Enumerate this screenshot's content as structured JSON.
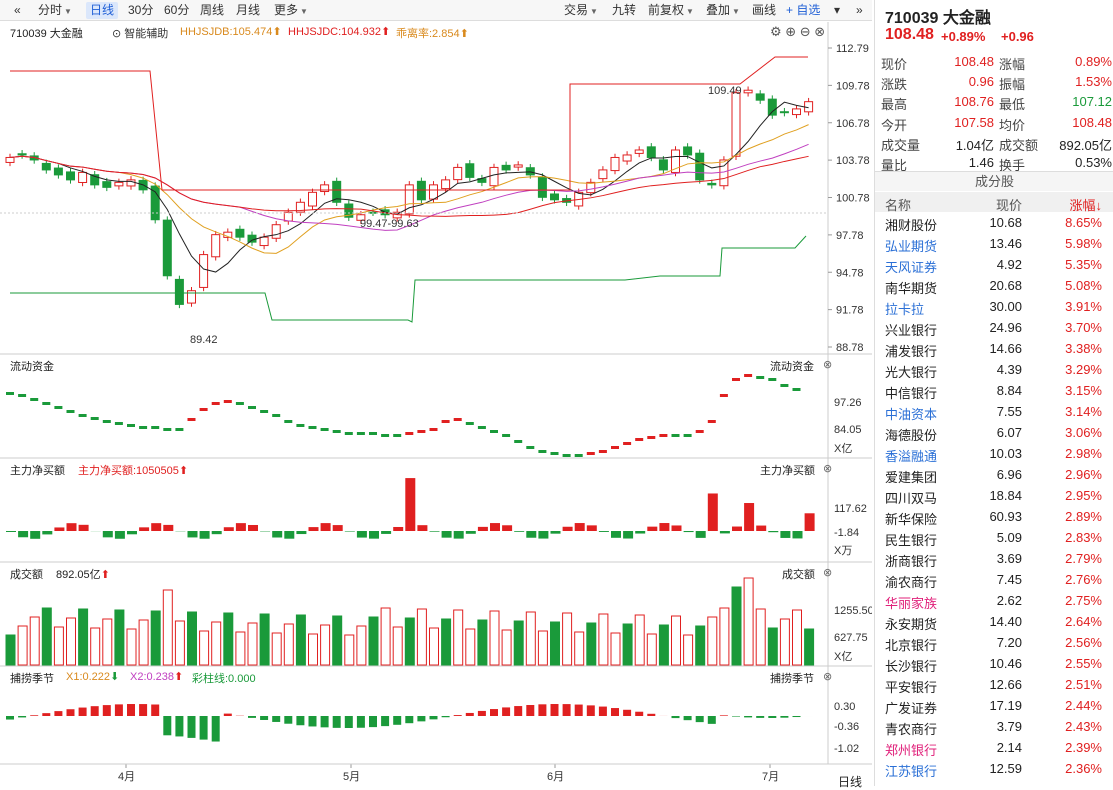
{
  "toolbar": {
    "left": [
      "分时",
      "日线",
      "30分",
      "60分",
      "周线",
      "月线",
      "更多"
    ],
    "right": [
      "交易",
      "九转",
      "前复权",
      "叠加",
      "画线",
      "+ 自选"
    ],
    "active": "日线"
  },
  "main": {
    "symbol_label": "710039 大金融",
    "assist": "智能辅助",
    "ind1": "HHJSJDB:105.474",
    "ind2": "HHJSJDC:104.932",
    "ind3": "乖离率:2.854",
    "y_ticks": [
      "112.79",
      "109.78",
      "106.78",
      "103.78",
      "100.78",
      "97.78",
      "94.78",
      "91.78",
      "88.78"
    ],
    "high_label": "109.49",
    "low_label": "89.42",
    "range_label": "99.47-99.63"
  },
  "flow": {
    "title": "流动资金",
    "right_title": "流动资金",
    "ticks": [
      "97.26",
      "84.05"
    ],
    "unit": "X亿"
  },
  "net": {
    "title": "主力净买额",
    "sub": "主力净买额:1050505",
    "right_title": "主力净买额",
    "ticks": [
      "117.62",
      "-1.84"
    ],
    "unit": "X万"
  },
  "vol": {
    "title": "成交额",
    "sub": "892.05亿",
    "right_title": "成交额",
    "ticks": [
      "1255.50",
      "627.75"
    ],
    "unit": "X亿"
  },
  "season": {
    "title": "捕捞季节",
    "x1": "X1:0.222",
    "x2": "X2:0.238",
    "bar": "彩柱线:0.000",
    "right_title": "捕捞季节",
    "ticks": [
      "0.30",
      "-0.36",
      "-1.02"
    ]
  },
  "xaxis": {
    "labels": [
      "4月",
      "5月",
      "6月",
      "7月"
    ],
    "period": "日线"
  },
  "quote": {
    "code": "710039 大金融",
    "price": "108.48",
    "chg_pct": "+0.89%",
    "chg": "+0.96",
    "rows": [
      [
        "现价",
        "108.48",
        "涨幅",
        "0.89%"
      ],
      [
        "涨跌",
        "0.96",
        "振幅",
        "1.53%"
      ],
      [
        "最高",
        "108.76",
        "最低",
        "107.12"
      ],
      [
        "今开",
        "107.58",
        "均价",
        "108.48"
      ],
      [
        "成交量",
        "1.04亿",
        "成交额",
        "892.05亿"
      ],
      [
        "量比",
        "1.46",
        "换手",
        "0.53%"
      ]
    ]
  },
  "components": {
    "title": "成分股",
    "headers": [
      "名称",
      "现价",
      "涨幅↓"
    ],
    "rows": [
      [
        "湘财股份",
        "10.68",
        "8.65%"
      ],
      [
        "弘业期货",
        "13.46",
        "5.98%"
      ],
      [
        "天风证券",
        "4.92",
        "5.35%"
      ],
      [
        "南华期货",
        "20.68",
        "5.08%"
      ],
      [
        "拉卡拉",
        "30.00",
        "3.91%"
      ],
      [
        "兴业银行",
        "24.96",
        "3.70%"
      ],
      [
        "浦发银行",
        "14.66",
        "3.38%"
      ],
      [
        "光大银行",
        "4.39",
        "3.29%"
      ],
      [
        "中信银行",
        "8.84",
        "3.15%"
      ],
      [
        "中油资本",
        "7.55",
        "3.14%"
      ],
      [
        "海德股份",
        "6.07",
        "3.06%"
      ],
      [
        "香溢融通",
        "10.03",
        "2.98%"
      ],
      [
        "爱建集团",
        "6.96",
        "2.96%"
      ],
      [
        "四川双马",
        "18.84",
        "2.95%"
      ],
      [
        "新华保险",
        "60.93",
        "2.89%"
      ],
      [
        "民生银行",
        "5.09",
        "2.83%"
      ],
      [
        "浙商银行",
        "3.69",
        "2.79%"
      ],
      [
        "渝农商行",
        "7.45",
        "2.76%"
      ],
      [
        "华丽家族",
        "2.62",
        "2.75%"
      ],
      [
        "永安期货",
        "14.40",
        "2.64%"
      ],
      [
        "北京银行",
        "7.20",
        "2.56%"
      ],
      [
        "长沙银行",
        "10.46",
        "2.55%"
      ],
      [
        "平安银行",
        "12.66",
        "2.51%"
      ],
      [
        "广发证券",
        "17.19",
        "2.44%"
      ],
      [
        "青农商行",
        "3.79",
        "2.43%"
      ],
      [
        "郑州银行",
        "2.14",
        "2.39%"
      ],
      [
        "江苏银行",
        "12.59",
        "2.36%"
      ]
    ],
    "styles": [
      "",
      "lnk",
      "lnk",
      "",
      "lnk",
      "",
      "",
      "",
      "",
      "lnk",
      "",
      "lnk",
      "",
      "",
      "",
      "",
      "",
      "",
      "pink",
      "",
      "",
      "",
      "",
      "",
      "",
      "pink",
      "lnk"
    ]
  },
  "colors": {
    "up": "#e02020",
    "down": "#1a9a3a"
  }
}
